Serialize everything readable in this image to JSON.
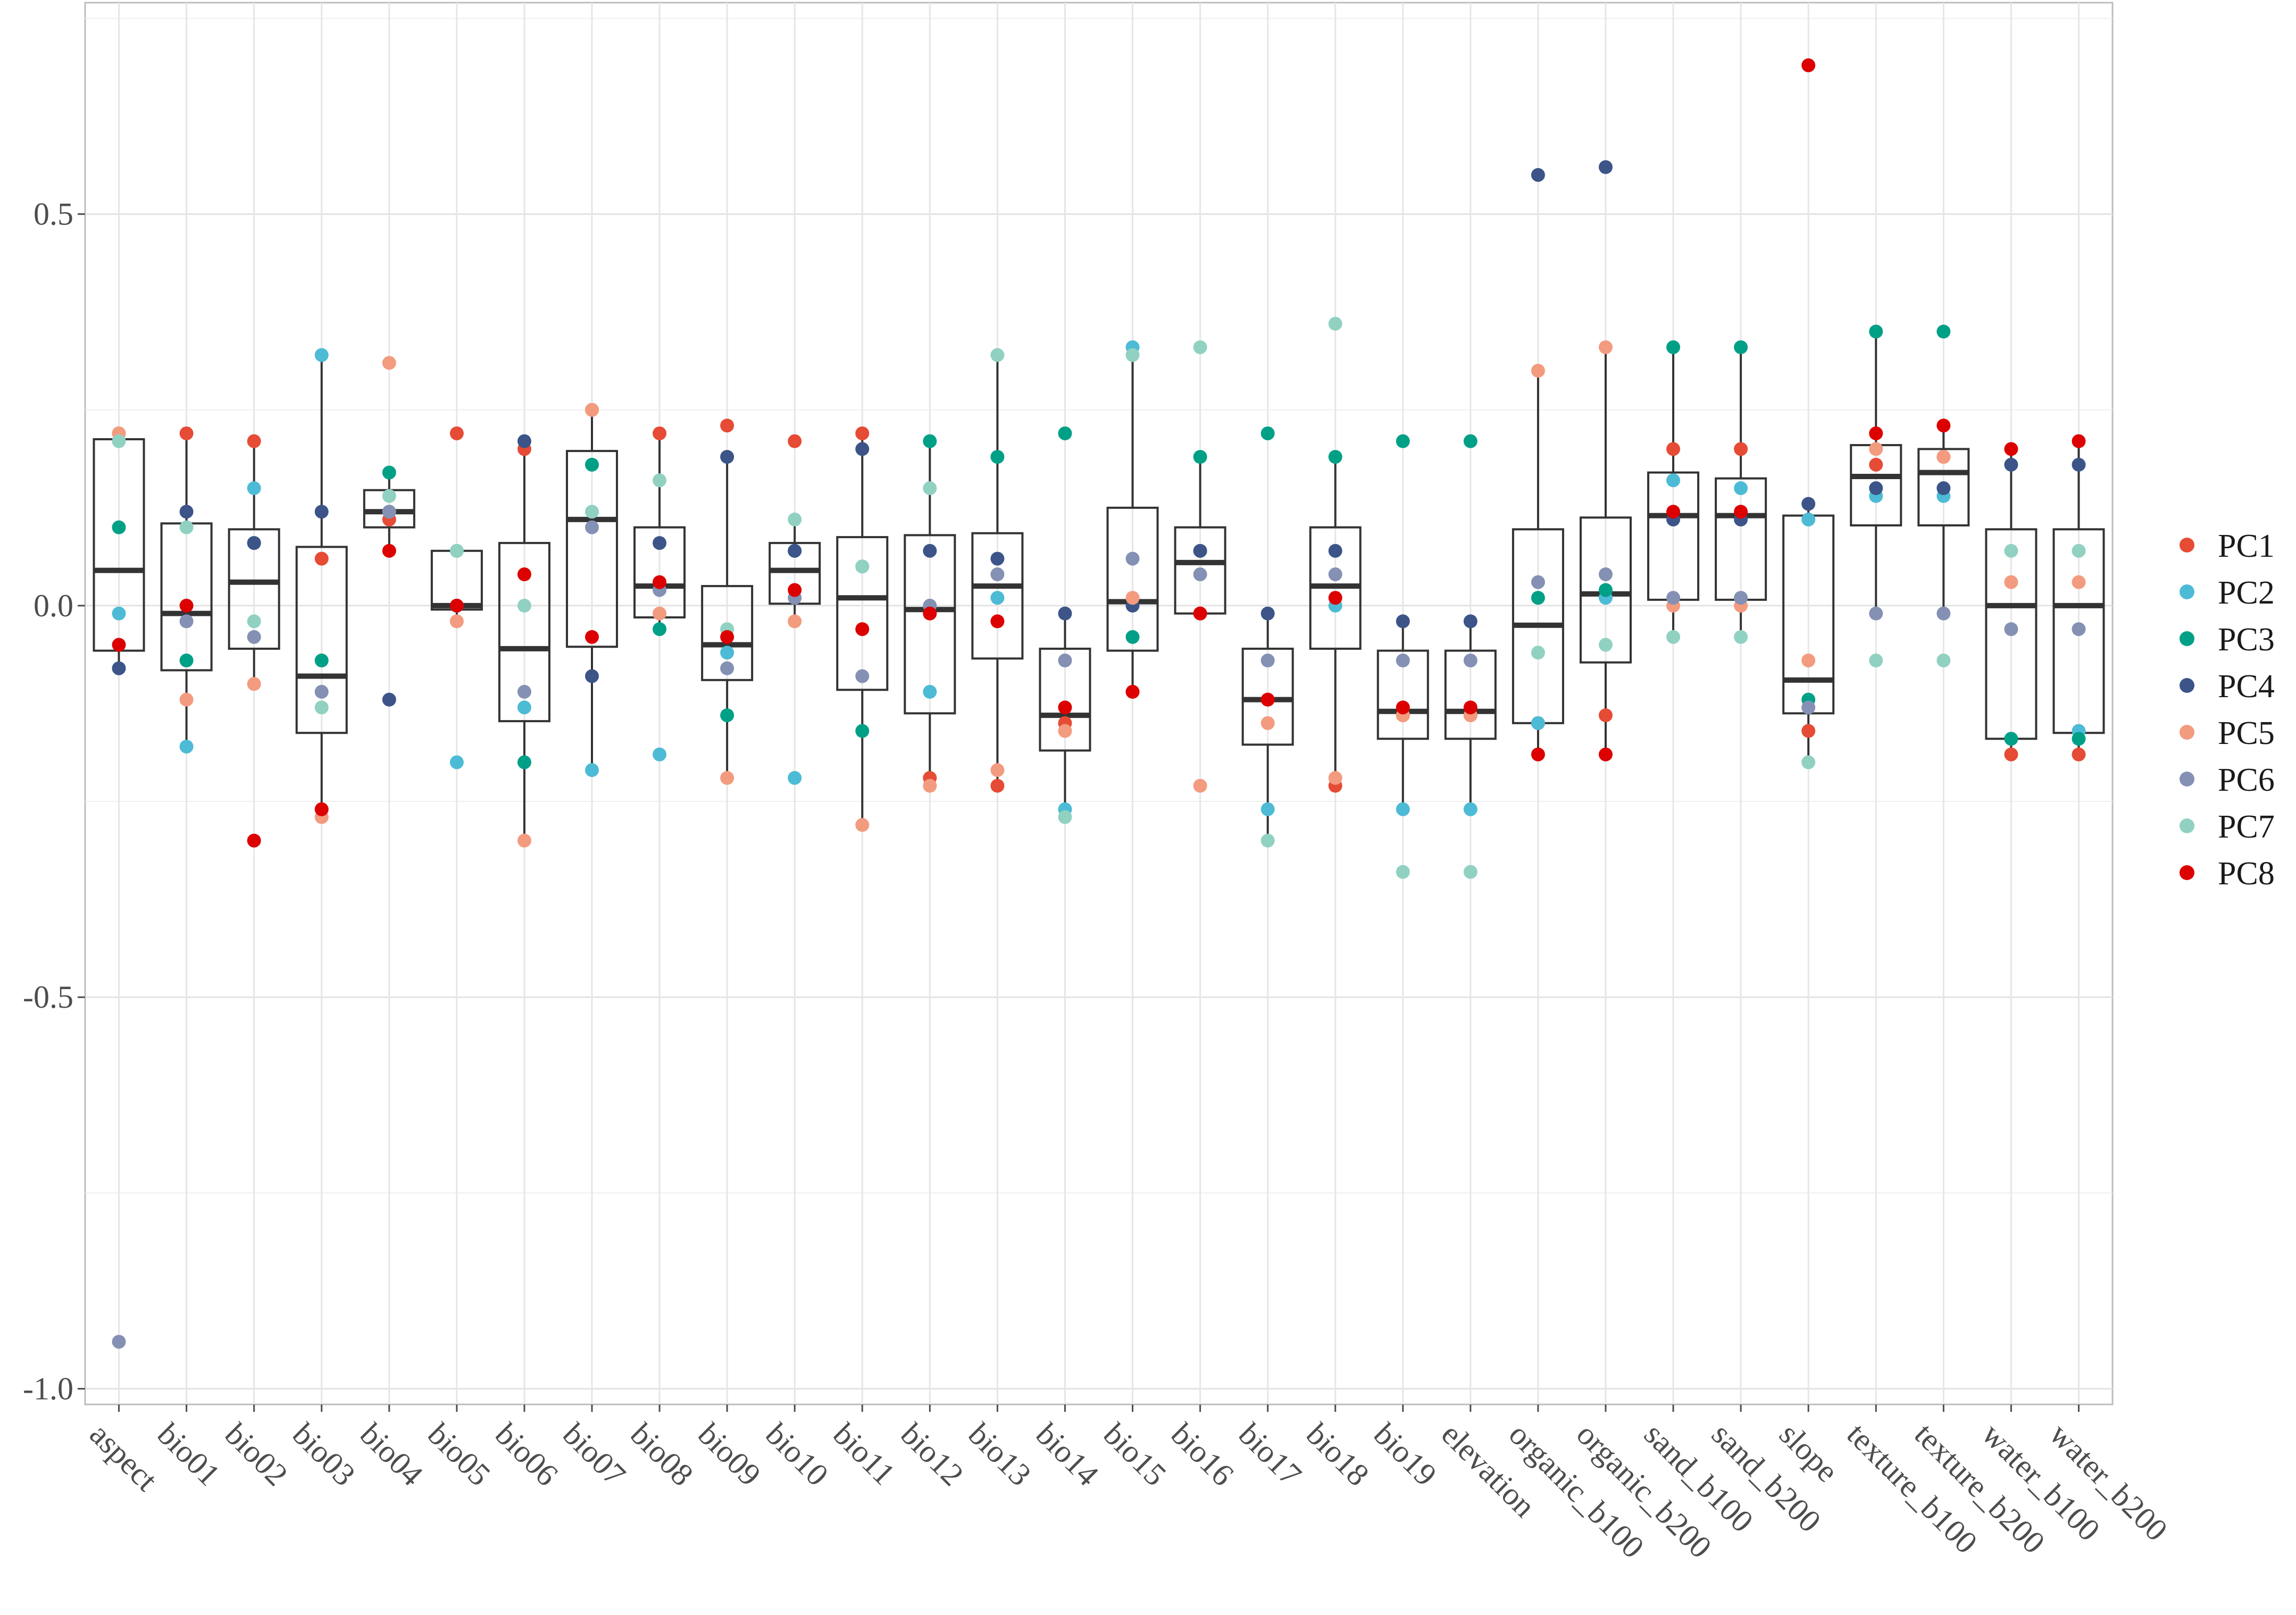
{
  "chart_data": {
    "type": "boxplot",
    "title": "",
    "xlabel": "",
    "ylabel": "",
    "ylim": [
      -1.02,
      0.77
    ],
    "y_ticks": [
      0.5,
      0.0,
      -0.5,
      -1.0
    ],
    "y_tick_labels": [
      "0.5",
      "0.0",
      "-0.5",
      "-1.0"
    ],
    "grid": true,
    "legend_position": "right",
    "categories": [
      "aspect",
      "bio01",
      "bio02",
      "bio03",
      "bio04",
      "bio05",
      "bio06",
      "bio07",
      "bio08",
      "bio09",
      "bio10",
      "bio11",
      "bio12",
      "bio13",
      "bio14",
      "bio15",
      "bio16",
      "bio17",
      "bio18",
      "bio19",
      "elevation",
      "organic_b100",
      "organic_b200",
      "sand_b100",
      "sand_b200",
      "slope",
      "texture_b100",
      "texture_b200",
      "water_b100",
      "water_b200"
    ],
    "series": [
      {
        "name": "PC1",
        "color": "#E64B35",
        "values": [
          0.22,
          0.22,
          0.21,
          0.06,
          0.11,
          0.22,
          0.2,
          0.25,
          0.22,
          0.23,
          0.21,
          0.22,
          -0.22,
          -0.23,
          -0.15,
          -0.11,
          -0.01,
          -0.12,
          -0.23,
          -0.14,
          -0.14,
          -0.15,
          -0.14,
          0.2,
          0.2,
          -0.16,
          0.18,
          0.19,
          -0.19,
          -0.19
        ]
      },
      {
        "name": "PC2",
        "color": "#4DBBD5",
        "values": [
          -0.01,
          -0.18,
          0.15,
          0.32,
          0.12,
          -0.2,
          -0.13,
          -0.21,
          -0.19,
          -0.06,
          -0.22,
          0.05,
          -0.11,
          0.01,
          -0.26,
          0.33,
          0.07,
          -0.26,
          0.0,
          -0.26,
          -0.26,
          -0.15,
          0.01,
          0.16,
          0.15,
          0.11,
          0.14,
          0.14,
          -0.17,
          -0.16
        ]
      },
      {
        "name": "PC3",
        "color": "#00A087",
        "values": [
          0.1,
          -0.07,
          0.08,
          -0.07,
          0.17,
          0.07,
          -0.2,
          0.18,
          -0.03,
          -0.14,
          0.07,
          -0.16,
          0.21,
          0.19,
          0.22,
          -0.04,
          0.19,
          0.22,
          0.19,
          0.21,
          0.21,
          0.01,
          0.02,
          0.33,
          0.33,
          -0.12,
          0.35,
          0.35,
          -0.17,
          -0.17
        ]
      },
      {
        "name": "PC4",
        "color": "#3C5488",
        "values": [
          -0.08,
          0.12,
          0.08,
          0.12,
          -0.12,
          0.0,
          0.21,
          -0.09,
          0.08,
          0.19,
          0.07,
          0.2,
          0.07,
          0.06,
          -0.01,
          0.0,
          0.07,
          -0.01,
          0.07,
          -0.02,
          -0.02,
          0.55,
          0.56,
          0.11,
          0.11,
          0.13,
          0.15,
          0.15,
          0.18,
          0.18
        ]
      },
      {
        "name": "PC5",
        "color": "#F39B7F",
        "values": [
          0.22,
          -0.12,
          -0.1,
          -0.27,
          0.31,
          -0.02,
          -0.3,
          0.25,
          -0.01,
          -0.22,
          -0.02,
          -0.28,
          -0.23,
          -0.21,
          -0.16,
          0.01,
          -0.23,
          -0.15,
          -0.22,
          -0.14,
          -0.14,
          0.3,
          0.33,
          0.0,
          0.0,
          -0.07,
          0.2,
          0.19,
          0.03,
          0.03
        ]
      },
      {
        "name": "PC6",
        "color": "#8491B4",
        "values": [
          -0.94,
          -0.02,
          -0.04,
          -0.11,
          0.12,
          0.0,
          -0.11,
          0.1,
          0.02,
          -0.08,
          0.01,
          -0.09,
          0.0,
          0.04,
          -0.07,
          0.06,
          0.04,
          -0.07,
          0.04,
          -0.07,
          -0.07,
          0.03,
          0.04,
          0.01,
          0.01,
          -0.13,
          -0.01,
          -0.01,
          -0.03,
          -0.03
        ]
      },
      {
        "name": "PC7",
        "color": "#91D1C2",
        "values": [
          0.21,
          0.1,
          -0.02,
          -0.13,
          0.14,
          0.07,
          0.0,
          0.12,
          0.16,
          -0.03,
          0.11,
          0.05,
          0.15,
          0.32,
          -0.27,
          0.32,
          0.33,
          -0.3,
          0.36,
          -0.34,
          -0.34,
          -0.06,
          -0.05,
          -0.04,
          -0.04,
          -0.2,
          -0.07,
          -0.07,
          0.07,
          0.07
        ]
      },
      {
        "name": "PC8",
        "color": "#DC0000",
        "values": [
          -0.05,
          0.0,
          -0.3,
          -0.26,
          0.07,
          0.0,
          0.04,
          -0.04,
          0.03,
          -0.04,
          0.02,
          -0.03,
          -0.01,
          -0.02,
          -0.13,
          -0.11,
          -0.01,
          -0.12,
          0.01,
          -0.13,
          -0.13,
          -0.19,
          -0.19,
          0.12,
          0.12,
          0.69,
          0.22,
          0.23,
          0.2,
          0.21
        ]
      }
    ]
  }
}
